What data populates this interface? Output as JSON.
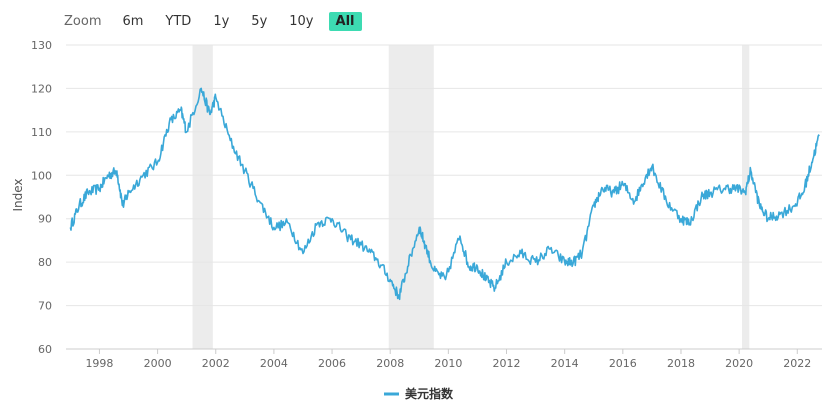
{
  "zoom": {
    "label": "Zoom",
    "buttons": [
      "6m",
      "YTD",
      "1y",
      "5y",
      "10y",
      "All"
    ],
    "active": "All"
  },
  "chart_data": {
    "type": "line",
    "ylabel": "Index",
    "ylim": [
      60,
      130
    ],
    "yticks": [
      60,
      70,
      80,
      90,
      100,
      110,
      120,
      130
    ],
    "xlim": [
      1996.85,
      2022.85
    ],
    "xticks": [
      "1998",
      "2000",
      "2002",
      "2004",
      "2006",
      "2008",
      "2010",
      "2012",
      "2014",
      "2016",
      "2018",
      "2020",
      "2022"
    ],
    "grid": true,
    "legend_position": "bottom-center",
    "series": [
      {
        "name": "美元指数",
        "color": "#3aa8d8",
        "x": [
          1997.0,
          1997.3,
          1997.6,
          1998.0,
          1998.3,
          1998.6,
          1998.8,
          1999.0,
          1999.5,
          2000.0,
          2000.4,
          2000.8,
          2001.0,
          2001.5,
          2001.8,
          2002.0,
          2002.5,
          2003.0,
          2003.5,
          2004.0,
          2004.5,
          2005.0,
          2005.5,
          2006.0,
          2006.5,
          2007.0,
          2007.5,
          2008.0,
          2008.3,
          2008.6,
          2009.0,
          2009.2,
          2009.5,
          2009.9,
          2010.4,
          2010.7,
          2011.0,
          2011.3,
          2011.6,
          2012.0,
          2012.5,
          2013.0,
          2013.5,
          2014.0,
          2014.3,
          2014.6,
          2015.0,
          2015.3,
          2015.7,
          2016.0,
          2016.4,
          2016.8,
          2017.0,
          2017.5,
          2018.0,
          2018.3,
          2018.7,
          2019.0,
          2019.5,
          2019.9,
          2020.2,
          2020.4,
          2020.7,
          2021.0,
          2021.4,
          2021.9,
          2022.2,
          2022.5,
          2022.75
        ],
        "values": [
          88,
          93,
          96,
          97,
          100,
          101,
          93,
          96,
          100,
          103,
          112,
          115,
          110,
          120,
          114,
          118,
          108,
          101,
          94,
          88,
          89,
          82,
          89,
          90,
          86,
          84,
          81,
          76,
          72,
          79,
          88,
          84,
          78,
          76,
          86,
          79,
          79,
          76,
          74,
          80,
          82,
          80,
          83,
          80,
          80,
          82,
          93,
          97,
          96,
          98,
          94,
          100,
          102,
          94,
          90,
          89,
          95,
          96,
          97,
          97,
          96,
          101,
          93,
          90,
          91,
          93,
          96,
          103,
          109
        ]
      }
    ],
    "shaded_regions": [
      [
        2001.2,
        2001.9
      ],
      [
        2007.95,
        2009.5
      ],
      [
        2020.1,
        2020.35
      ]
    ]
  }
}
